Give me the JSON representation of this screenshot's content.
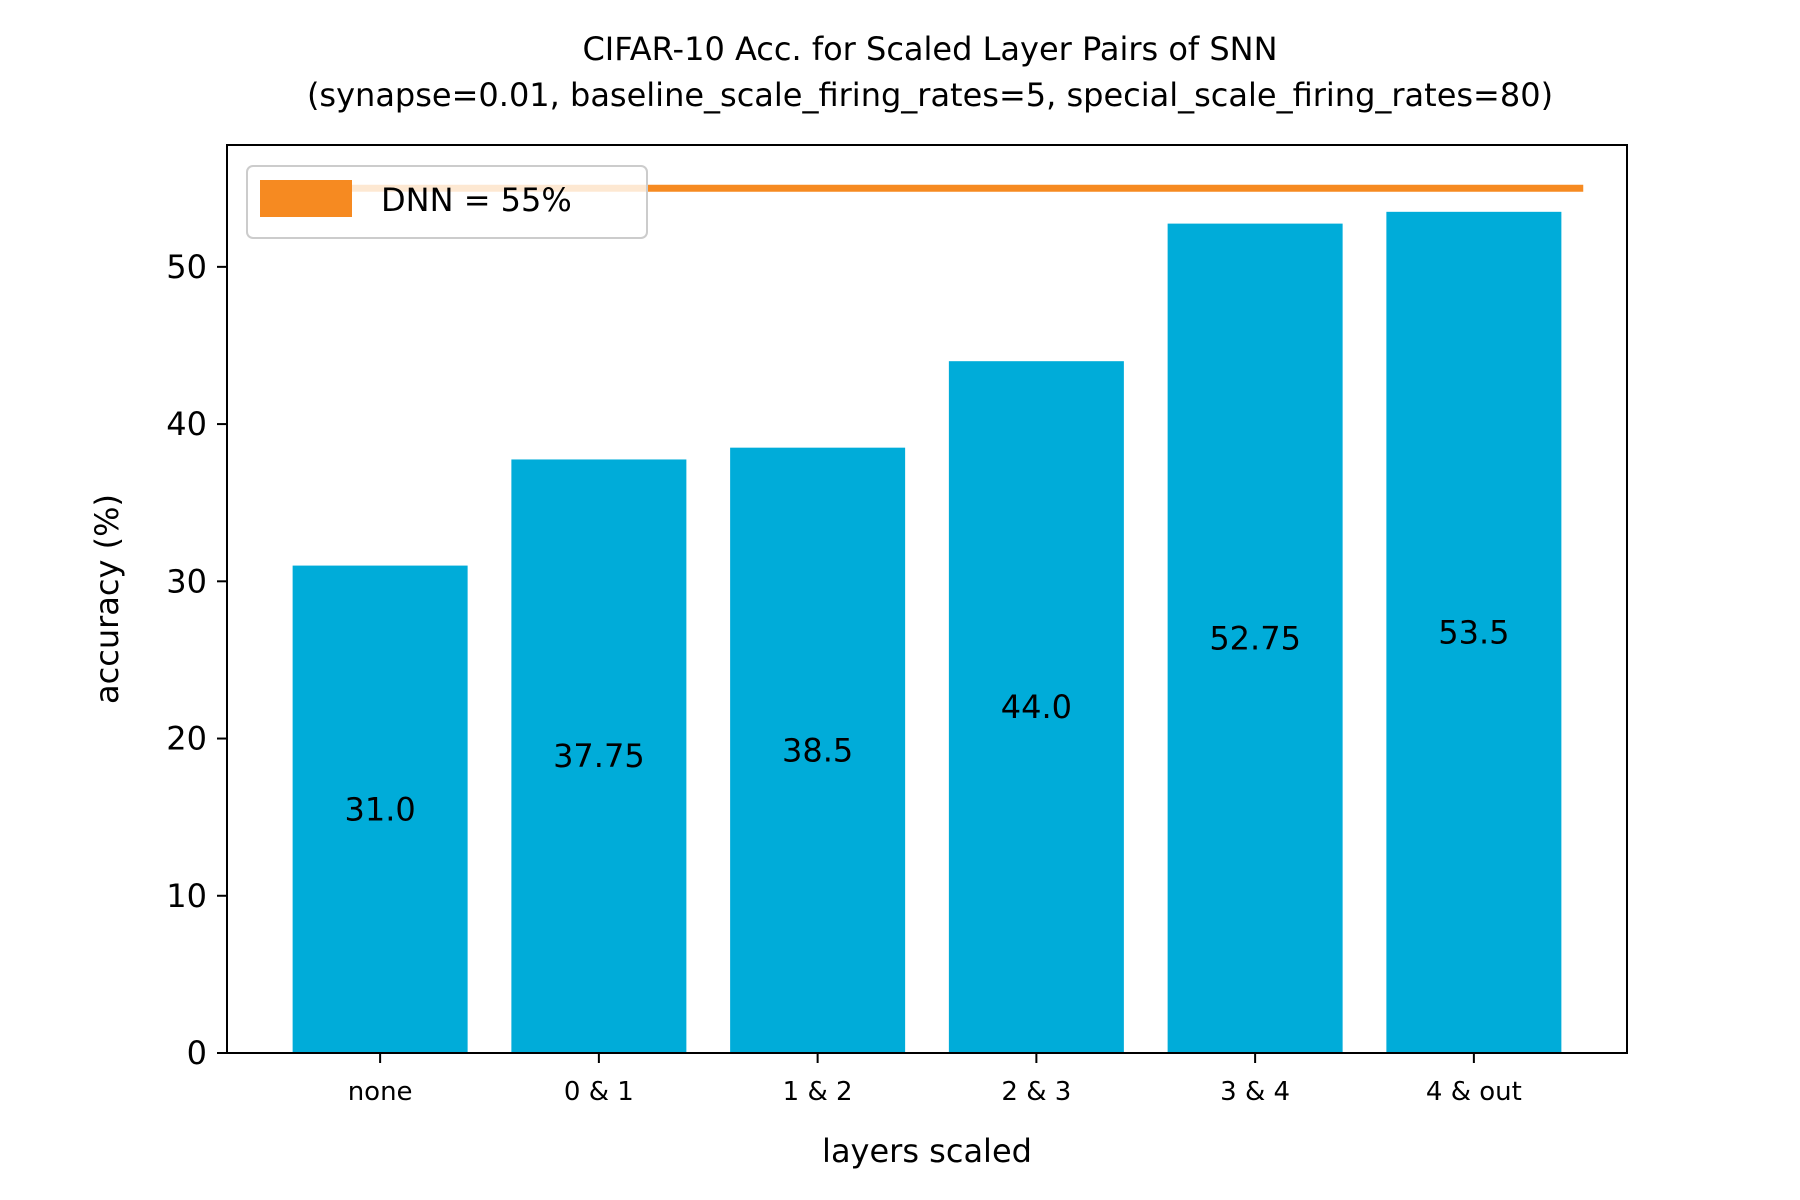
{
  "chart_data": {
    "type": "bar",
    "title": "CIFAR-10 Acc. for Scaled Layer Pairs of SNN",
    "subtitle": "(synapse=0.01, baseline_scale_firing_rates=5, special_scale_firing_rates=80)",
    "xlabel": "layers scaled",
    "ylabel": "accuracy (%)",
    "categories": [
      "none",
      "0 & 1",
      "1 & 2",
      "2 & 3",
      "3 & 4",
      "4 & out"
    ],
    "values": [
      31.0,
      37.75,
      38.5,
      44.0,
      52.75,
      53.5
    ],
    "value_labels": [
      "31.0",
      "37.75",
      "38.5",
      "44.0",
      "52.75",
      "53.5"
    ],
    "ylim": [
      0,
      57.75
    ],
    "yticks": [
      0,
      10,
      20,
      30,
      40,
      50
    ],
    "bar_color": "#00acd9",
    "reference_line": {
      "label": "DNN = 55%",
      "value": 55,
      "color": "#f68a21"
    },
    "legend": {
      "placement": "top-left",
      "entries": [
        "DNN = 55%"
      ]
    },
    "grid": false
  }
}
